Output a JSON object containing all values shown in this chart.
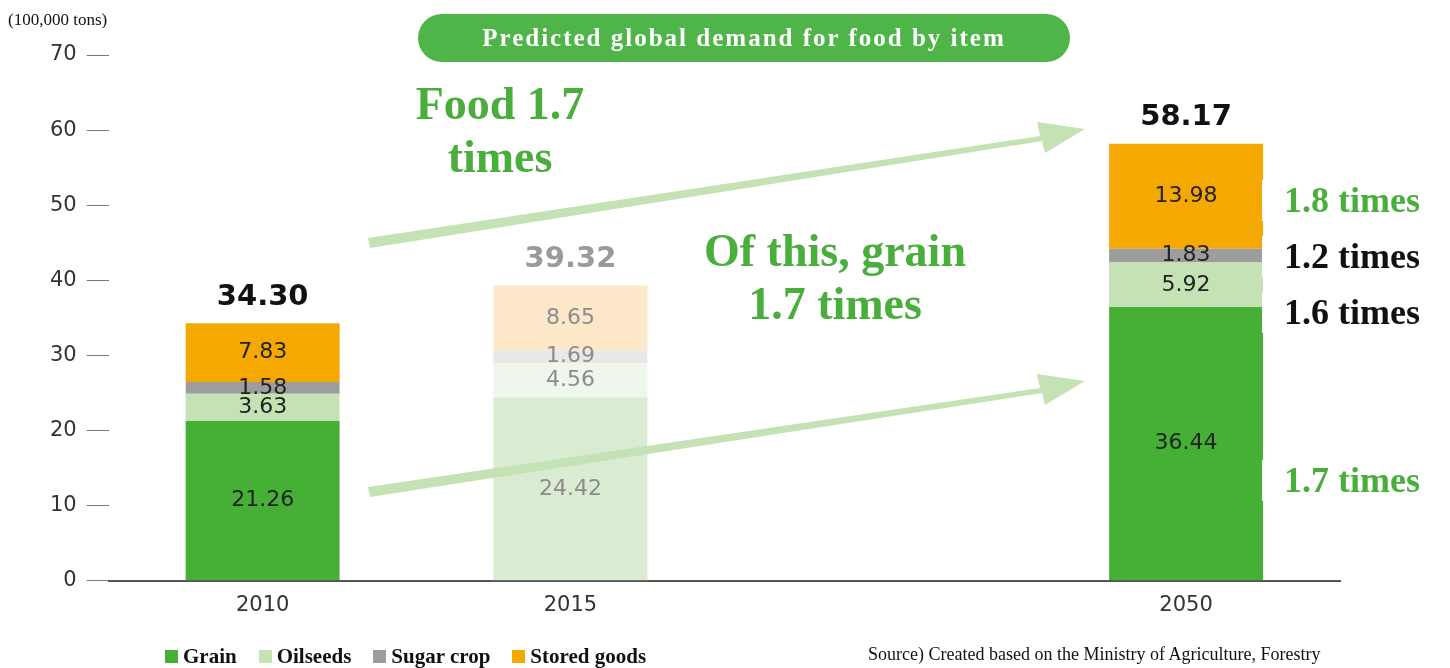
{
  "chart_data": {
    "type": "bar",
    "stacked": true,
    "title": "Predicted global demand for food by item",
    "ylabel": "(100,000 tons)",
    "categories": [
      "2010",
      "2015",
      null,
      "2050"
    ],
    "series": [
      {
        "name": "Grain",
        "color": "#45b035",
        "colors": [
          "#45b035",
          "#d9ecd1",
          null,
          "#45b035"
        ],
        "values": [
          21.26,
          24.42,
          null,
          36.44
        ]
      },
      {
        "name": "Oilseeds",
        "color": "#c4e2b4",
        "colors": [
          "#c4e2b4",
          "#eff6eb",
          null,
          "#c4e2b4"
        ],
        "values": [
          3.63,
          4.56,
          null,
          5.92
        ]
      },
      {
        "name": "Sugar crop",
        "color": "#9d9d9d",
        "colors": [
          "#9d9d9d",
          "#e8e8e8",
          null,
          "#9d9d9d"
        ],
        "values": [
          1.58,
          1.69,
          null,
          1.83
        ]
      },
      {
        "name": "Stored goods",
        "color": "#f5a800",
        "colors": [
          "#f5a800",
          "#fde7c9",
          null,
          "#f5a800"
        ],
        "values": [
          7.83,
          8.65,
          null,
          13.98
        ]
      }
    ],
    "totals": [
      "34.30",
      "39.32",
      null,
      "58.17"
    ],
    "data_labels": true,
    "ylim": [
      0,
      70
    ],
    "yticks": [
      0,
      10,
      20,
      30,
      40,
      50,
      60,
      70
    ],
    "grid": false,
    "legend": "bottom",
    "annotations": [
      "Food 1.7 times",
      "Of this, grain 1.7 times",
      "1.8 times",
      "1.2 times",
      "1.6 times",
      "1.7 times",
      "Source) Created based on the Ministry of Agriculture, Forestry"
    ]
  }
}
